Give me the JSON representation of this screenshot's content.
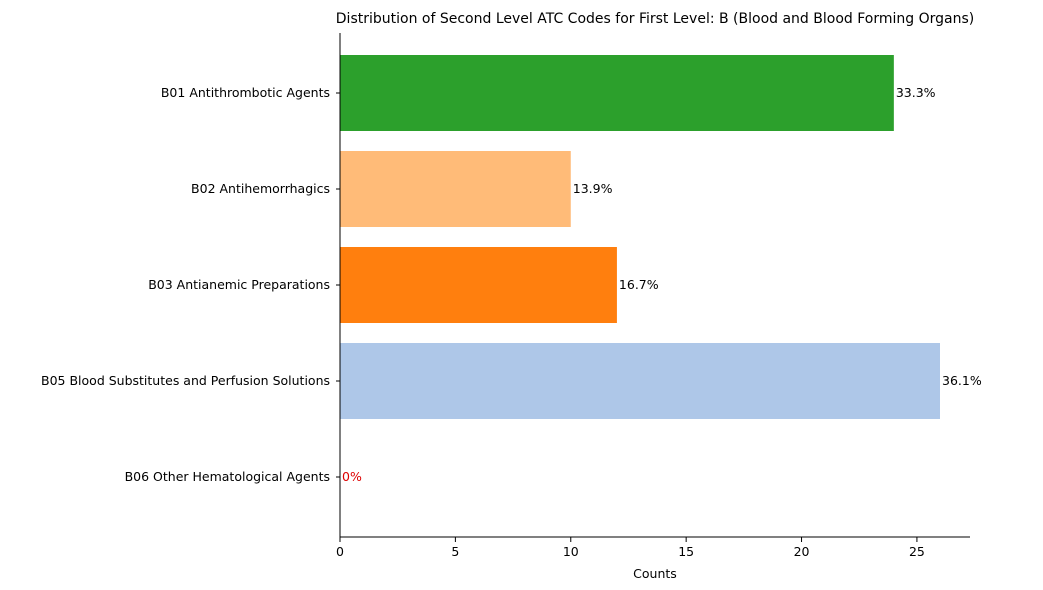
{
  "chart_data": {
    "type": "bar",
    "orientation": "horizontal",
    "title": "Distribution of Second Level ATC Codes for First Level: B (Blood and Blood Forming Organs)",
    "xlabel": "Counts",
    "ylabel": "",
    "xlim": [
      0,
      27.3
    ],
    "xticks": [
      0,
      5,
      10,
      15,
      20,
      25
    ],
    "xtick_labels": [
      "0",
      "5",
      "10",
      "15",
      "20",
      "25"
    ],
    "grid": false,
    "categories": [
      "B01 Antithrombotic Agents",
      "B02 Antihemorrhagics",
      "B03 Antianemic Preparations",
      "B05 Blood Substitutes and Perfusion Solutions",
      "B06 Other Hematological Agents"
    ],
    "values": [
      24,
      10,
      12,
      26,
      0
    ],
    "data_labels": [
      "33.3%",
      "13.9%",
      "16.7%",
      "36.1%",
      "0%"
    ],
    "colors": [
      "#2ca02c",
      "#ffbb78",
      "#ff7f0e",
      "#aec7e8",
      "#98df8a"
    ],
    "label_colors": [
      "#000000",
      "#000000",
      "#000000",
      "#000000",
      "#dd0000"
    ]
  }
}
